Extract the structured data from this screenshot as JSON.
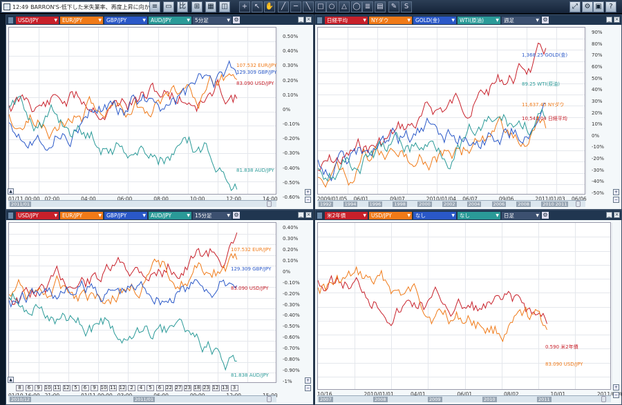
{
  "toolbar": {
    "time": "12:49",
    "headline": "BARRON'S-低下した米失業率、再度上昇に向かう可能…",
    "buttons": [
      "news-list-icon",
      "window-icon",
      "chart-icon",
      "zoom-icon",
      "grid-icon",
      "eraser-icon",
      "crosshair-icon",
      "pointer-icon",
      "hand-icon",
      "line-icon",
      "hline-icon",
      "ray-icon",
      "rect-icon",
      "circle-icon",
      "triangle-icon",
      "ellipse-icon",
      "fib-icon",
      "channel-icon",
      "pen-icon",
      "sell-icon",
      "layout-icon",
      "settings-icon",
      "lock-icon",
      "help-icon"
    ]
  },
  "panels": [
    {
      "tabs": [
        {
          "label": "USD/JPY",
          "color": "#c8202a"
        },
        {
          "label": "EUR/JPY",
          "color": "#f07a18"
        },
        {
          "label": "GBP/JPY",
          "color": "#2a58c8"
        },
        {
          "label": "AUD/JPY",
          "color": "#2a9a98"
        },
        {
          "label": "5分足",
          "color": "#3c5070"
        }
      ],
      "y_ticks": [
        "0.50%",
        "0.40%",
        "0.30%",
        "0.20%",
        "0.10%",
        "0%",
        "-0.10%",
        "-0.20%",
        "-0.30%",
        "-0.40%",
        "-0.50%",
        "-0.60%"
      ],
      "x_ticks": [
        "01/11 00:00",
        "02:00",
        "04:00",
        "06:00",
        "08:00",
        "10:00",
        "12:00",
        "14:00"
      ],
      "timeline_years": [
        "2011/01"
      ],
      "series_labels": [
        {
          "text": "107.532 EUR/JPY",
          "color": "#f07a18"
        },
        {
          "text": "129.309 GBP/JPY",
          "color": "#2a58c8"
        },
        {
          "text": "83.090 USD/JPY",
          "color": "#c8202a"
        },
        {
          "text": "81.838 AUD/JPY",
          "color": "#2a9a98"
        }
      ]
    },
    {
      "tabs": [
        {
          "label": "日経平均",
          "color": "#c8202a"
        },
        {
          "label": "NYダウ",
          "color": "#f07a18"
        },
        {
          "label": "GOLD(金)",
          "color": "#2a58c8"
        },
        {
          "label": "WTI(原油)",
          "color": "#2a9a98"
        },
        {
          "label": "週足",
          "color": "#3c5070"
        }
      ],
      "y_ticks": [
        "90%",
        "80%",
        "70%",
        "60%",
        "50%",
        "40%",
        "30%",
        "20%",
        "10%",
        "0%",
        "-10%",
        "-20%",
        "-30%",
        "-40%",
        "-50%"
      ],
      "x_ticks": [
        "2009/01/05",
        "06/01",
        "09/07",
        "2010/01/04",
        "06/07",
        "09/06",
        "2011/01/03",
        "06/06"
      ],
      "timeline_years": [
        "1992",
        "1994",
        "1996",
        "1998",
        "2000",
        "2002",
        "2004",
        "2006",
        "2008",
        "2010 2011"
      ],
      "series_labels": [
        {
          "text": "1,368.25 GOLD(金)",
          "color": "#2a58c8"
        },
        {
          "text": "89.25 WTI(原油)",
          "color": "#2a9a98"
        },
        {
          "text": "11,637.45 NYダウ",
          "color": "#f07a18"
        },
        {
          "text": "10,541.04 日経平均",
          "color": "#c8202a"
        }
      ]
    },
    {
      "tabs": [
        {
          "label": "USD/JPY",
          "color": "#c8202a"
        },
        {
          "label": "EUR/JPY",
          "color": "#f07a18"
        },
        {
          "label": "GBP/JPY",
          "color": "#2a58c8"
        },
        {
          "label": "AUD/JPY",
          "color": "#2a9a98"
        },
        {
          "label": "15分足",
          "color": "#3c5070"
        }
      ],
      "y_ticks": [
        "0.40%",
        "0.30%",
        "0.20%",
        "0.10%",
        "0%",
        "-0.10%",
        "-0.20%",
        "-0.30%",
        "-0.40%",
        "-0.50%",
        "-0.60%",
        "-0.70%",
        "-0.80%",
        "-0.90%",
        "-1%"
      ],
      "x_ticks": [
        "01/10 16:00",
        "21:00",
        "01/11 00:00",
        "03:00",
        "06:00",
        "09:00",
        "12:00",
        "15:00"
      ],
      "timeline_years": [
        "2010/12",
        "2011/01"
      ],
      "day_boxes": [
        "8",
        "6",
        "9",
        "10",
        "11",
        "12",
        "5",
        "6",
        "9",
        "10",
        "11",
        "12",
        "2",
        "4",
        "5",
        "6",
        "22",
        "27",
        "23",
        "18",
        "23",
        "12",
        "13",
        "3"
      ],
      "series_labels": [
        {
          "text": "107.532 EUR/JPY",
          "color": "#f07a18"
        },
        {
          "text": "129.309 GBP/JPY",
          "color": "#2a58c8"
        },
        {
          "text": "83.090 USD/JPY",
          "color": "#c8202a"
        },
        {
          "text": "81.838 AUD/JPY",
          "color": "#2a9a98"
        }
      ]
    },
    {
      "tabs": [
        {
          "label": "米2年債",
          "color": "#c8202a"
        },
        {
          "label": "USD/JPY",
          "color": "#f07a18"
        },
        {
          "label": "なし",
          "color": "#2a58c8"
        },
        {
          "label": "なし",
          "color": "#2a9a98"
        },
        {
          "label": "日足",
          "color": "#3c5070"
        }
      ],
      "y_ticks": [],
      "x_ticks": [
        "10/16",
        "2010/01/01",
        "04/01",
        "06/01",
        "08/02",
        "10/01",
        "2011/01/03"
      ],
      "timeline_years": [
        "2007",
        "2008",
        "2009",
        "2010",
        "2011"
      ],
      "series_labels": [
        {
          "text": "0.590 米2年債",
          "color": "#c8202a"
        },
        {
          "text": "83.090 USD/JPY",
          "color": "#f07a18"
        }
      ]
    }
  ]
}
